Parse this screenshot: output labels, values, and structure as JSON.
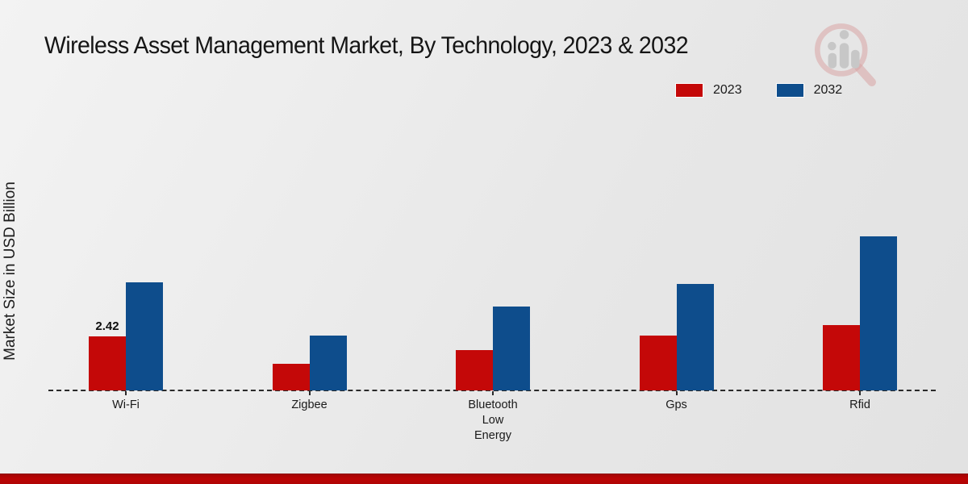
{
  "title": "Wireless Asset Management Market, By Technology, 2023 & 2032",
  "y_axis_label": "Market Size in USD Billion",
  "legend": {
    "items": [
      {
        "label": "2023",
        "color": "#c40808"
      },
      {
        "label": "2032",
        "color": "#0e4d8c"
      }
    ]
  },
  "watermark_icon": "magnifier-bar-chart-logo",
  "footer_color": "#b30505",
  "chart_data": {
    "type": "bar",
    "title": "Wireless Asset Management Market, By Technology, 2023 & 2032",
    "xlabel": "",
    "ylabel": "Market Size in USD Billion",
    "categories": [
      "Wi-Fi",
      "Zigbee",
      "Bluetooth Low Energy",
      "Gps",
      "Rfid"
    ],
    "series": [
      {
        "name": "2023",
        "color": "#c40808",
        "values": [
          2.42,
          1.19,
          1.8,
          2.48,
          2.95
        ]
      },
      {
        "name": "2032",
        "color": "#0e4d8c",
        "values": [
          4.88,
          2.46,
          3.79,
          4.81,
          6.95
        ]
      }
    ],
    "point_labels": [
      {
        "series_index": 0,
        "category_index": 0,
        "text": "2.42"
      }
    ],
    "ylim": [
      0,
      7.5
    ],
    "baseline_value": 0,
    "baseline_style": "dashed",
    "grid": false,
    "legend_position": "top-right"
  }
}
